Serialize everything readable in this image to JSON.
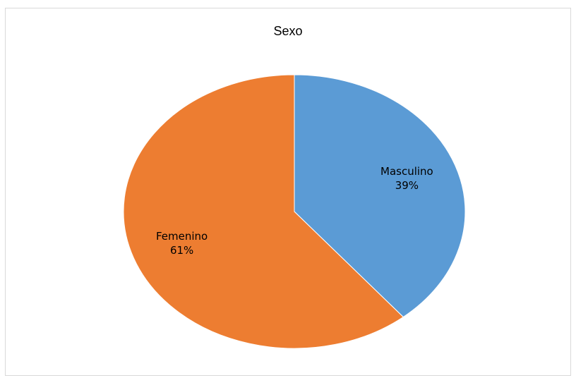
{
  "chart_data": {
    "type": "pie",
    "title": "Sexo",
    "slices": [
      {
        "name": "Masculino",
        "value": 39,
        "label": "39%",
        "color": "#5b9bd5"
      },
      {
        "name": "Femenino",
        "value": 61,
        "label": "61%",
        "color": "#ed7d31"
      }
    ],
    "start_angle_deg": 0,
    "direction": "clockwise",
    "legend": "none",
    "data_labels": "inside"
  }
}
